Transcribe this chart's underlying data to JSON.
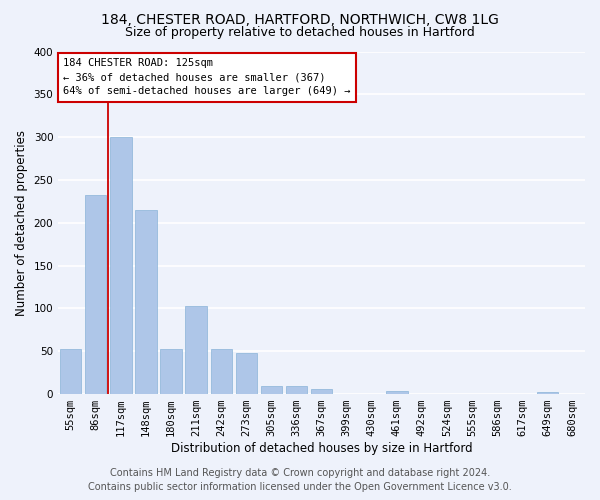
{
  "title1": "184, CHESTER ROAD, HARTFORD, NORTHWICH, CW8 1LG",
  "title2": "Size of property relative to detached houses in Hartford",
  "xlabel": "Distribution of detached houses by size in Hartford",
  "ylabel": "Number of detached properties",
  "categories": [
    "55sqm",
    "86sqm",
    "117sqm",
    "148sqm",
    "180sqm",
    "211sqm",
    "242sqm",
    "273sqm",
    "305sqm",
    "336sqm",
    "367sqm",
    "399sqm",
    "430sqm",
    "461sqm",
    "492sqm",
    "524sqm",
    "555sqm",
    "586sqm",
    "617sqm",
    "649sqm",
    "680sqm"
  ],
  "values": [
    53,
    233,
    300,
    215,
    53,
    103,
    53,
    48,
    9,
    9,
    6,
    0,
    0,
    4,
    0,
    0,
    0,
    0,
    0,
    2,
    0
  ],
  "bar_color": "#aec6e8",
  "bar_edge_color": "#8ab4d8",
  "bg_color": "#eef2fb",
  "grid_color": "#ffffff",
  "annotation_line1": "184 CHESTER ROAD: 125sqm",
  "annotation_line2": "← 36% of detached houses are smaller (367)",
  "annotation_line3": "64% of semi-detached houses are larger (649) →",
  "vline_x": 1.5,
  "ylim": [
    0,
    400
  ],
  "yticks": [
    0,
    50,
    100,
    150,
    200,
    250,
    300,
    350,
    400
  ],
  "footer1": "Contains HM Land Registry data © Crown copyright and database right 2024.",
  "footer2": "Contains public sector information licensed under the Open Government Licence v3.0.",
  "annotation_box_color": "#ffffff",
  "annotation_box_edge_color": "#cc0000",
  "vline_color": "#cc0000",
  "title1_fontsize": 10,
  "title2_fontsize": 9,
  "xlabel_fontsize": 8.5,
  "ylabel_fontsize": 8.5,
  "tick_fontsize": 7.5,
  "annotation_fontsize": 7.5,
  "footer_fontsize": 7
}
